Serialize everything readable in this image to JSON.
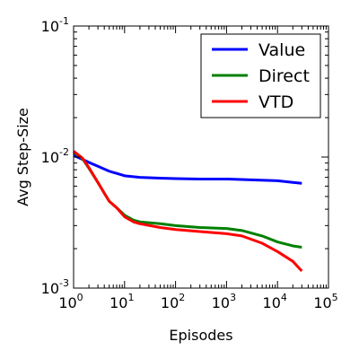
{
  "chart_data": {
    "type": "line",
    "xlabel": "Episodes",
    "ylabel": "Avg Step-Size",
    "xscale": "log",
    "yscale": "log",
    "xlim": [
      1,
      100000
    ],
    "ylim": [
      0.001,
      0.1
    ],
    "x_ticks": [
      {
        "base": "10",
        "exp": "0",
        "value": 1
      },
      {
        "base": "10",
        "exp": "1",
        "value": 10
      },
      {
        "base": "10",
        "exp": "2",
        "value": 100
      },
      {
        "base": "10",
        "exp": "3",
        "value": 1000
      },
      {
        "base": "10",
        "exp": "4",
        "value": 10000
      },
      {
        "base": "10",
        "exp": "5",
        "value": 100000
      }
    ],
    "y_ticks": [
      {
        "base": "10",
        "exp": "-3",
        "value": 0.001
      },
      {
        "base": "10",
        "exp": "-2",
        "value": 0.01
      },
      {
        "base": "10",
        "exp": "-1",
        "value": 0.1
      }
    ],
    "grid": false,
    "legend_position": "top-right",
    "series": [
      {
        "name": "Value",
        "color": "#0000ff",
        "x": [
          1,
          1.5,
          2,
          3,
          4,
          5,
          7,
          10,
          20,
          50,
          100,
          300,
          1000,
          3000,
          10000,
          20000,
          30000
        ],
        "y": [
          0.0103,
          0.0096,
          0.0091,
          0.0085,
          0.0081,
          0.0078,
          0.0075,
          0.0072,
          0.007,
          0.0069,
          0.00685,
          0.0068,
          0.0068,
          0.0067,
          0.0066,
          0.0064,
          0.0063
        ]
      },
      {
        "name": "Direct",
        "color": "#008000",
        "x": [
          1,
          1.5,
          2,
          3,
          4,
          5,
          7,
          10,
          15,
          20,
          50,
          100,
          300,
          1000,
          2000,
          5000,
          10000,
          20000,
          30000
        ],
        "y": [
          0.0109,
          0.0097,
          0.0082,
          0.0064,
          0.0053,
          0.0046,
          0.0041,
          0.0036,
          0.0033,
          0.0032,
          0.0031,
          0.003,
          0.0029,
          0.00285,
          0.00275,
          0.0025,
          0.00225,
          0.0021,
          0.00205
        ]
      },
      {
        "name": "VTD",
        "color": "#ff0000",
        "x": [
          1,
          1.5,
          2,
          3,
          4,
          5,
          7,
          10,
          15,
          20,
          50,
          100,
          300,
          1000,
          2000,
          5000,
          10000,
          20000,
          30000
        ],
        "y": [
          0.0111,
          0.0098,
          0.0083,
          0.0064,
          0.0053,
          0.0046,
          0.0041,
          0.0035,
          0.0032,
          0.0031,
          0.0029,
          0.0028,
          0.0027,
          0.0026,
          0.0025,
          0.0022,
          0.0019,
          0.0016,
          0.00135
        ]
      }
    ]
  }
}
